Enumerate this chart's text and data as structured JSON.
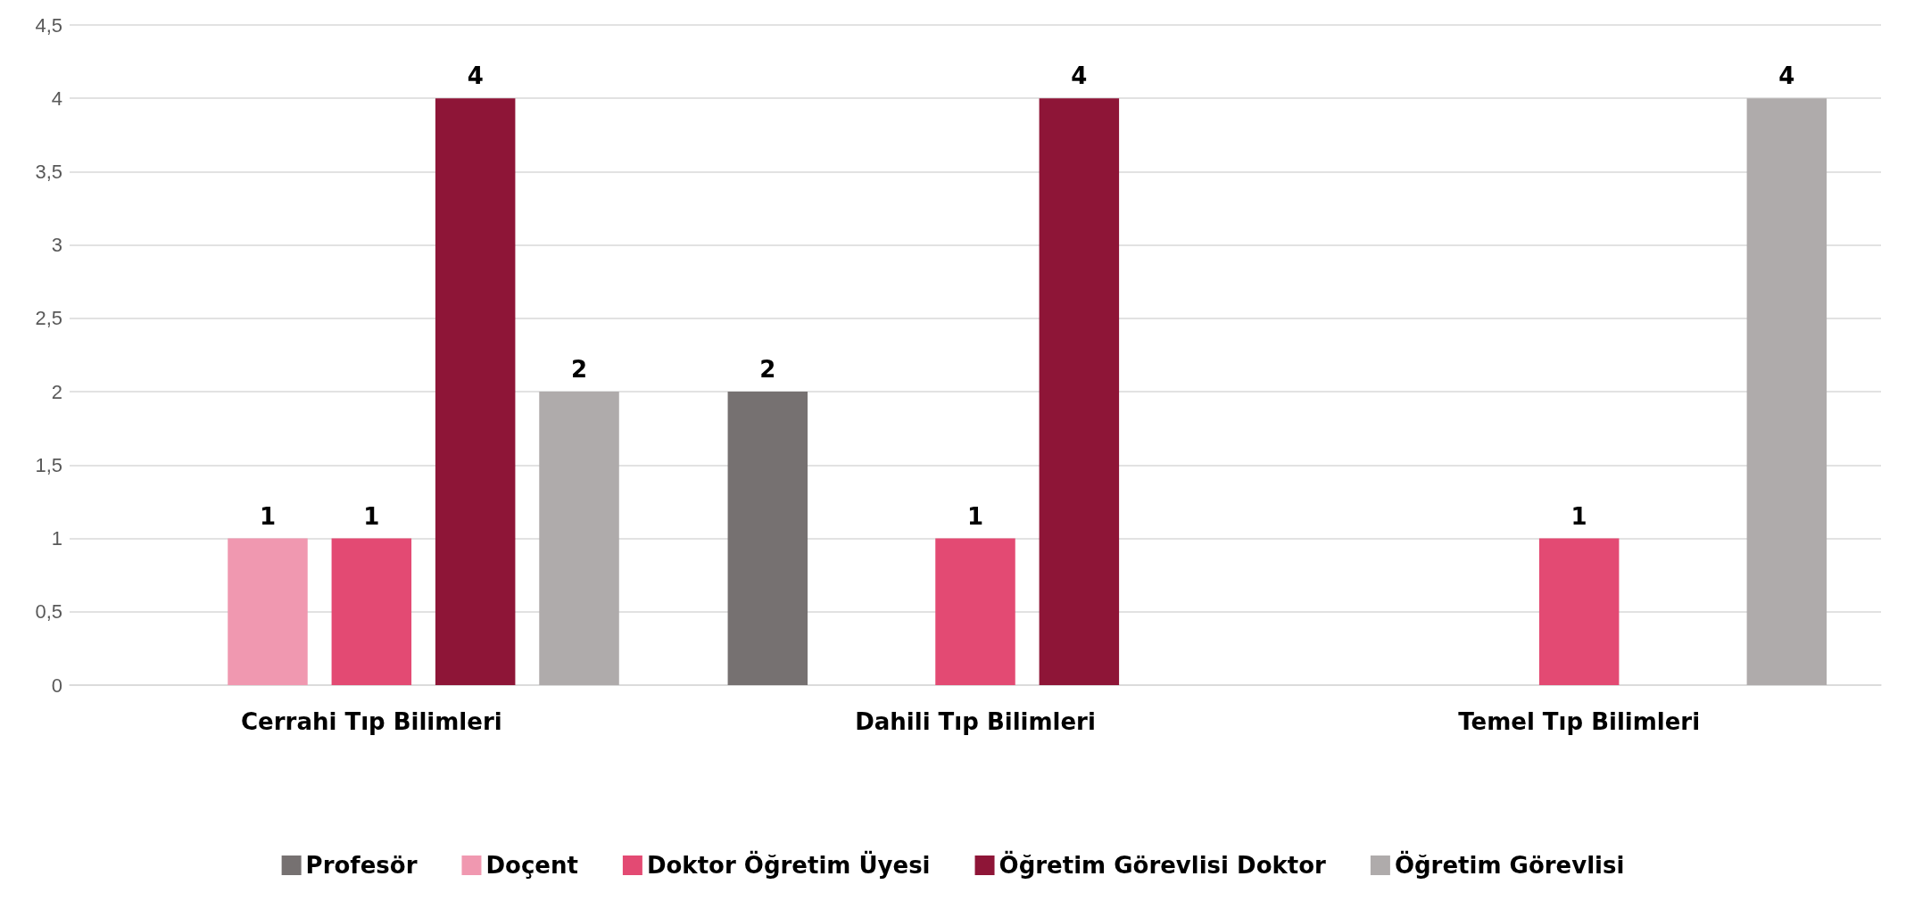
{
  "chart_data": {
    "type": "bar",
    "categories": [
      "Cerrahi Tıp Bilimleri",
      "Dahili Tıp Bilimleri",
      "Temel Tıp Bilimleri"
    ],
    "series": [
      {
        "name": "Profesör",
        "color": "#767171",
        "values": [
          null,
          2,
          null
        ]
      },
      {
        "name": "Doçent",
        "color": "#f098b0",
        "values": [
          1,
          null,
          null
        ]
      },
      {
        "name": "Doktor Öğretim Üyesi",
        "color": "#e34a73",
        "values": [
          1,
          1,
          1
        ]
      },
      {
        "name": "Öğretim Görevlisi Doktor",
        "color": "#8e1537",
        "values": [
          4,
          4,
          null
        ]
      },
      {
        "name": "Öğretim Görevlisi",
        "color": "#afabab",
        "values": [
          2,
          null,
          4
        ]
      }
    ],
    "ylim": [
      0,
      4.5
    ],
    "yticks": [
      0,
      {
        "value": 0.5,
        "label": "0,5"
      },
      1,
      {
        "value": 1.5,
        "label": "1,5"
      },
      2,
      {
        "value": 2.5,
        "label": "2,5"
      },
      3,
      {
        "value": 3.5,
        "label": "3,5"
      },
      4,
      {
        "value": 4.5,
        "label": "4,5"
      }
    ],
    "grid": "y",
    "legend": "bottom",
    "data_labels": true
  }
}
